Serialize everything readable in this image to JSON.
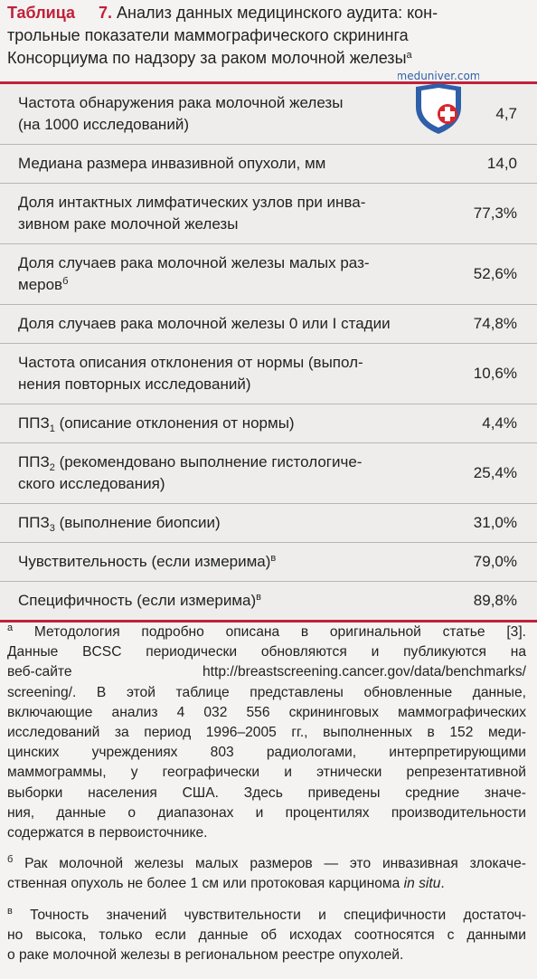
{
  "header": {
    "lines": [
      [
        {
          "strong": "Таблица"
        },
        {
          "num": "7."
        },
        {
          "text": " Анализ данных медицинского аудита: кон-"
        }
      ],
      [
        {
          "text": "трольные показатели маммографического скрининга"
        }
      ],
      [
        {
          "text": "Консорциума по надзору за раком молочной железы"
        },
        {
          "sup": "а"
        }
      ]
    ]
  },
  "watermark": "meduniver.com",
  "table": {
    "rows": [
      {
        "lines": [
          [
            {
              "text": "Частота обнаружения рака молочной железы"
            }
          ],
          [
            {
              "text": "(на 1000 исследований)"
            }
          ]
        ],
        "value": "4,7"
      },
      {
        "lines": [
          [
            {
              "text": "Медиана размера инвазивной опухоли, мм"
            }
          ]
        ],
        "value": "14,0"
      },
      {
        "lines": [
          [
            {
              "text": "Доля интактных лимфатических узлов при инва-"
            }
          ],
          [
            {
              "text": "зивном раке молочной железы"
            }
          ]
        ],
        "value": "77,3%"
      },
      {
        "lines": [
          [
            {
              "text": "Доля случаев рака молочной железы малых раз-"
            }
          ],
          [
            {
              "text": "меров"
            },
            {
              "sup": "б"
            }
          ]
        ],
        "value": "52,6%"
      },
      {
        "lines": [
          [
            {
              "text": "Доля случаев рака молочной железы 0 или I стадии"
            }
          ]
        ],
        "value": "74,8%"
      },
      {
        "lines": [
          [
            {
              "text": "Частота описания отклонения от нормы (выпол-"
            }
          ],
          [
            {
              "text": "нения повторных исследований)"
            }
          ]
        ],
        "value": "10,6%"
      },
      {
        "lines": [
          [
            {
              "text": "ППЗ"
            },
            {
              "sub": "1"
            },
            {
              "text": " (описание отклонения от нормы)"
            }
          ]
        ],
        "value": "4,4%"
      },
      {
        "lines": [
          [
            {
              "text": "ППЗ"
            },
            {
              "sub": "2"
            },
            {
              "text": " (рекомендовано выполнение гистологиче-"
            }
          ],
          [
            {
              "text": "ского исследования)"
            }
          ]
        ],
        "value": "25,4%"
      },
      {
        "lines": [
          [
            {
              "text": "ППЗ"
            },
            {
              "sub": "3"
            },
            {
              "text": " (выполнение биопсии)"
            }
          ]
        ],
        "value": "31,0%"
      },
      {
        "lines": [
          [
            {
              "text": "Чувствительность (если измерима)"
            },
            {
              "sup": "в"
            }
          ]
        ],
        "value": "79,0%"
      },
      {
        "lines": [
          [
            {
              "text": "Специфичность (если измерима)"
            },
            {
              "sup": "в"
            }
          ]
        ],
        "value": "89,8%"
      }
    ]
  },
  "footnotes": [
    {
      "lines": [
        [
          {
            "sup": "а"
          },
          {
            "text": " Методология подробно описана в оригинальной статье [3]."
          }
        ],
        [
          {
            "text": "Данные BCSC периодически обновляются и публикуются на"
          }
        ],
        [
          {
            "text": "веб-сайте http://breastscreening.cancer.gov/data/benchmarks/"
          }
        ],
        [
          {
            "text": "screening/. В этой таблице представлены обновленные данные,"
          }
        ],
        [
          {
            "text": "включающие анализ 4 032 556 скрининговых маммографических"
          }
        ],
        [
          {
            "text": "исследований за период 1996–2005 гг., выполненных в 152 меди-"
          }
        ],
        [
          {
            "text": "цинских учреждениях 803 радиологами, интерпретирующими"
          }
        ],
        [
          {
            "text": "маммограммы, у географически и этнически репрезентативной"
          }
        ],
        [
          {
            "text": "выборки населения США. Здесь приведены средние значе-"
          }
        ],
        [
          {
            "text": "ния, данные о диапазонах и процентилях производительности"
          }
        ],
        [
          {
            "text": "содержатся в первоисточнике."
          }
        ]
      ]
    },
    {
      "lines": [
        [
          {
            "sup": "б"
          },
          {
            "text": " Рак молочной железы малых размеров — это инвазивная злокаче-"
          }
        ],
        [
          {
            "text": "ственная опухоль не более 1 см или протоковая карцинома "
          },
          {
            "i": "in situ"
          },
          {
            "text": "."
          }
        ]
      ]
    },
    {
      "lines": [
        [
          {
            "sup": "в"
          },
          {
            "text": " Точность значений чувствительности и специфичности достаточ-"
          }
        ],
        [
          {
            "text": "но высока, только если данные об исходах соотносятся с данными"
          }
        ],
        [
          {
            "text": "о раке молочной железы в региональном реестре опухолей."
          }
        ]
      ]
    }
  ]
}
